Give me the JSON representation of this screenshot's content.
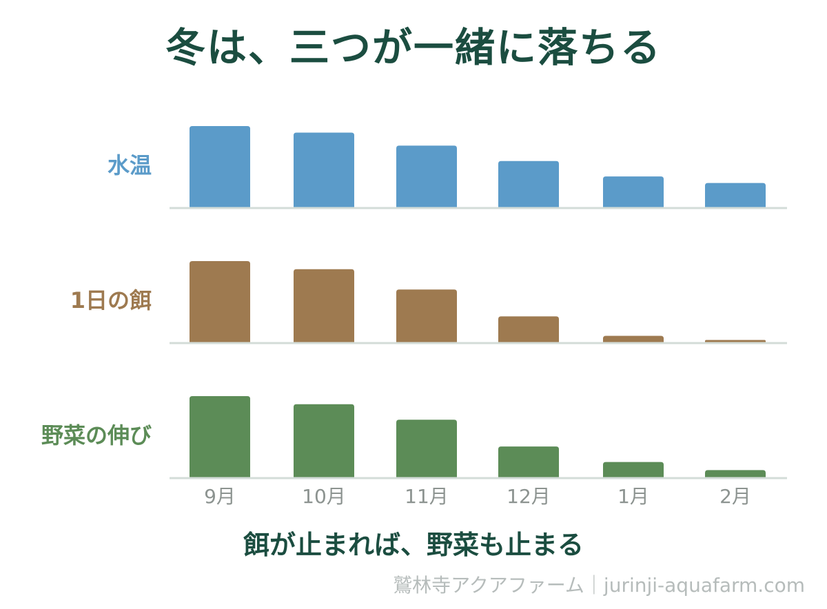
{
  "title": "冬は、三つが一緒に落ちる",
  "caption": "餌が止まれば、野菜も止まる",
  "credit": "鷲林寺アクアファーム｜jurinji-aquafarm.com",
  "chart_data": {
    "type": "bar",
    "categories": [
      "9月",
      "10月",
      "11月",
      "12月",
      "1月",
      "2月"
    ],
    "series": [
      {
        "name": "水温",
        "color": "#5b9bc9",
        "values": [
          100,
          92,
          76,
          57,
          38,
          30
        ]
      },
      {
        "name": "1日の餌",
        "color": "#9e7a50",
        "values": [
          100,
          90,
          65,
          32,
          8,
          3
        ]
      },
      {
        "name": "野菜の伸び",
        "color": "#5c8c57",
        "values": [
          100,
          90,
          71,
          38,
          19,
          9
        ]
      }
    ],
    "ylim": [
      0,
      100
    ],
    "grid": false,
    "baseline_color": "#d3dcd8",
    "tick_color": "#8c9390"
  }
}
